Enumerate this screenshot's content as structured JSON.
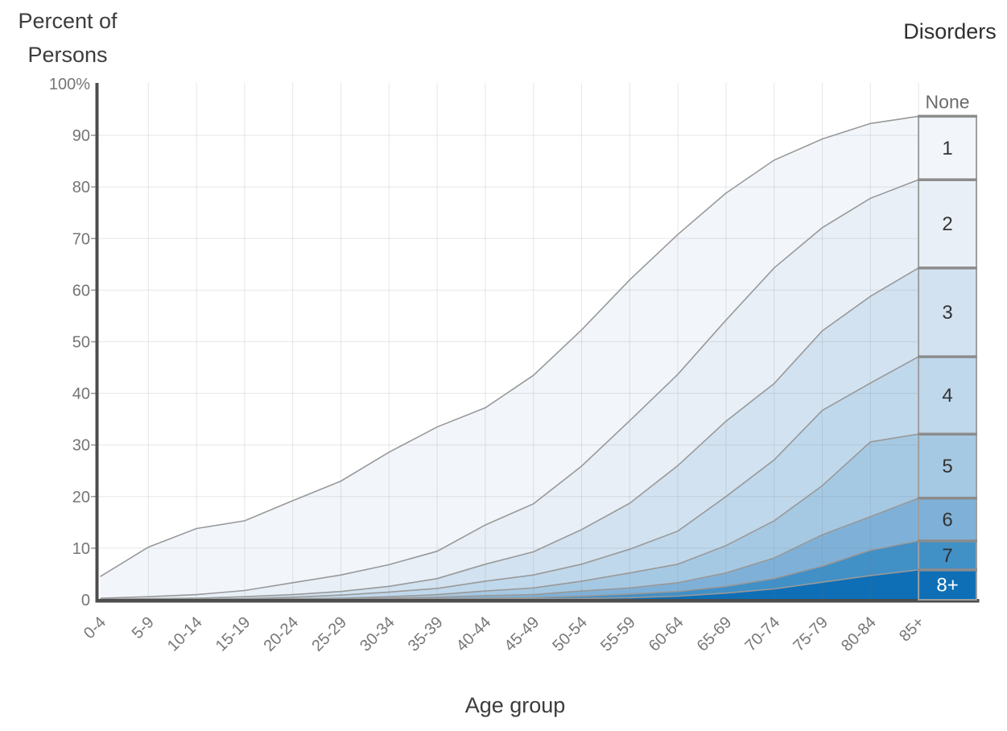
{
  "page": {
    "background": "#ffffff"
  },
  "titles": {
    "y_axis_title": "Percent of Persons",
    "x_axis_title": "Age group",
    "legend_title": "Disorders"
  },
  "y_axis": {
    "tick_labels": [
      "100%",
      "90",
      "80",
      "70",
      "60",
      "50",
      "40",
      "30",
      "20",
      "10",
      "0"
    ],
    "tick_values": [
      100,
      90,
      80,
      70,
      60,
      50,
      40,
      30,
      20,
      10,
      0
    ],
    "min": 0,
    "max": 100
  },
  "x_axis": {
    "categories": [
      "0-4",
      "5-9",
      "10-14",
      "15-19",
      "20-24",
      "25-29",
      "30-34",
      "35-39",
      "40-44",
      "45-49",
      "50-54",
      "55-59",
      "60-64",
      "65-69",
      "70-74",
      "75-79",
      "80-84",
      "85+"
    ]
  },
  "legend": {
    "none_label": "None",
    "box_labels": [
      "1",
      "2",
      "3",
      "4",
      "5",
      "6",
      "7",
      "8+"
    ]
  },
  "chart_data": {
    "type": "area",
    "stacked": true,
    "title": "",
    "xlabel": "Age group",
    "ylabel": "Percent of Persons",
    "ylim": [
      0,
      100
    ],
    "grid": true,
    "legend_position": "right",
    "categories": [
      "0-4",
      "5-9",
      "10-14",
      "15-19",
      "20-24",
      "25-29",
      "30-34",
      "35-39",
      "40-44",
      "45-49",
      "50-54",
      "55-59",
      "60-64",
      "65-69",
      "70-74",
      "75-79",
      "80-84",
      "85+"
    ],
    "series_note": "cumulative_percent[i] = percent of persons with at least N disorders in that age group; band for N is the gap down to the next series; 'None' is the white remainder up to 100%",
    "series": [
      {
        "name": "1",
        "color": "#f2f6fb",
        "label_color": "#333333",
        "cumulative_percent": [
          4.5,
          10.2,
          13.8,
          15.3,
          19.2,
          23.0,
          28.6,
          33.5,
          37.2,
          43.5,
          52.3,
          62.0,
          70.8,
          78.8,
          85.2,
          89.3,
          92.3,
          93.7
        ]
      },
      {
        "name": "2",
        "color": "#e8eff7",
        "label_color": "#333333",
        "cumulative_percent": [
          0.3,
          0.6,
          1.0,
          1.8,
          3.3,
          4.8,
          6.8,
          9.4,
          14.5,
          18.6,
          25.9,
          34.7,
          43.7,
          54.2,
          64.3,
          72.1,
          77.8,
          81.4
        ]
      },
      {
        "name": "3",
        "color": "#d2e2f0",
        "label_color": "#333333",
        "cumulative_percent": [
          0.1,
          0.2,
          0.3,
          0.6,
          1.0,
          1.6,
          2.6,
          4.1,
          6.9,
          9.3,
          13.6,
          18.7,
          26.0,
          34.6,
          41.9,
          52.1,
          58.8,
          64.3
        ]
      },
      {
        "name": "4",
        "color": "#c0d8ec",
        "label_color": "#333333",
        "cumulative_percent": [
          0.0,
          0.1,
          0.1,
          0.2,
          0.5,
          0.9,
          1.5,
          2.2,
          3.6,
          4.8,
          6.9,
          9.8,
          13.3,
          20.0,
          27.1,
          36.7,
          42.0,
          47.1
        ]
      },
      {
        "name": "5",
        "color": "#a6c9e3",
        "label_color": "#333333",
        "cumulative_percent": [
          0.0,
          0.0,
          0.1,
          0.1,
          0.2,
          0.3,
          0.6,
          1.0,
          1.7,
          2.3,
          3.6,
          5.2,
          6.9,
          10.5,
          15.3,
          22.1,
          30.6,
          32.1
        ]
      },
      {
        "name": "6",
        "color": "#7fb1d8",
        "label_color": "#333333",
        "cumulative_percent": [
          0.0,
          0.0,
          0.0,
          0.1,
          0.1,
          0.2,
          0.3,
          0.5,
          0.8,
          1.0,
          1.7,
          2.3,
          3.3,
          5.2,
          8.1,
          12.6,
          16.1,
          19.7
        ]
      },
      {
        "name": "7",
        "color": "#4190c6",
        "label_color": "#2f2f2f",
        "cumulative_percent": [
          0.0,
          0.0,
          0.0,
          0.0,
          0.0,
          0.1,
          0.1,
          0.2,
          0.3,
          0.4,
          0.7,
          1.1,
          1.6,
          2.6,
          4.1,
          6.5,
          9.6,
          11.4
        ]
      },
      {
        "name": "8+",
        "color": "#0e6fb6",
        "label_color": "#ffffff",
        "cumulative_percent": [
          0.0,
          0.0,
          0.0,
          0.0,
          0.0,
          0.0,
          0.0,
          0.1,
          0.1,
          0.15,
          0.25,
          0.4,
          0.7,
          1.3,
          2.1,
          3.4,
          4.7,
          5.8
        ]
      }
    ],
    "none_series": {
      "name": "None",
      "color": "#ffffff"
    }
  },
  "style": {
    "line_color": "#999999",
    "grid_color_rgba": "rgba(110,120,130,0.18)",
    "axis_color": "#4d4d4d",
    "tick_label_color": "#757575",
    "title_color": "#3c3c3c",
    "box_border_color": "#9e9e9e",
    "box_top_border_color": "#8c8c8c",
    "none_label_color": "#6b6b6b"
  }
}
